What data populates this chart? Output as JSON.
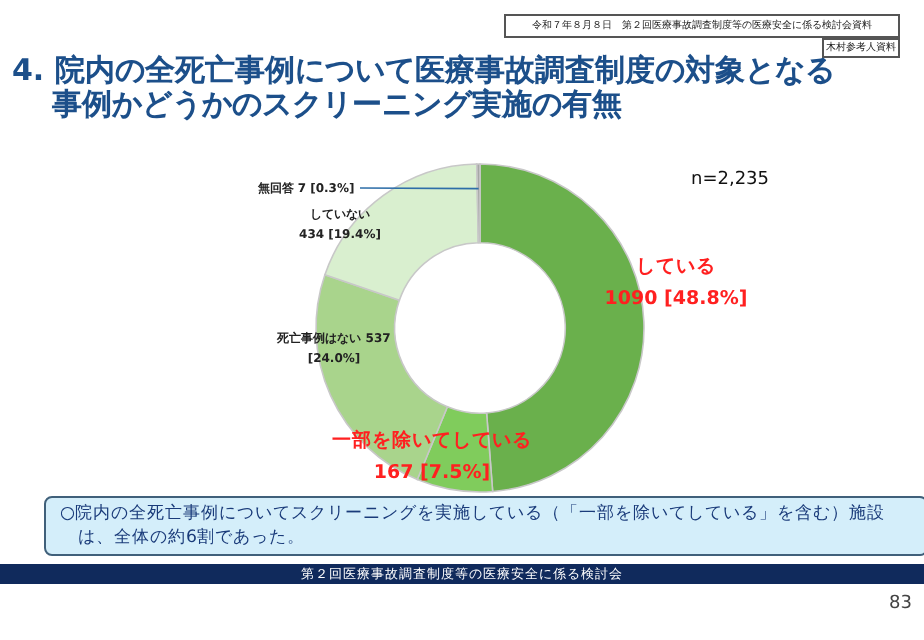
{
  "chart_data": {
    "type": "donut",
    "title": "4. 院内の全死亡事例について医療事故調査制度の対象となる事例かどうかのスクリーニング実施の有無",
    "categories": [
      "している",
      "一部を除いてしている",
      "死亡事例はない",
      "していない",
      "無回答"
    ],
    "values": [
      1090,
      167,
      537,
      434,
      7
    ],
    "colors": [
      "#6ab04c",
      "#80cc5c",
      "#a9d48c",
      "#d9efcf",
      "#a6a6a6"
    ],
    "value_labels": [
      "1090 [48.8%]",
      "167 [7.5%]",
      "537 [24.0%]",
      "434 [19.4%]",
      "7 [0.3%]"
    ],
    "legend": false,
    "annotations": [
      "n=2,235",
      "令和７年８月８日　第２回医療事故調査制度等の医療安全に係る検討会資料",
      "木村参考人資料",
      "○院内の全死亡事例についてスクリーニングを実施している（「一部を除いてしている」を含む）施設は、全体の約6割であった。",
      "第２回医療事故調査制度等の医療安全に係る検討会",
      "83"
    ]
  }
}
